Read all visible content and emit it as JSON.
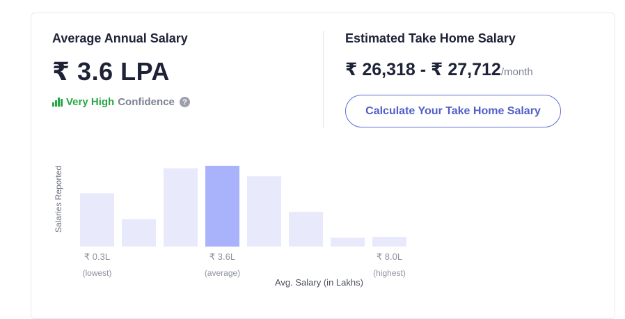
{
  "average": {
    "label": "Average Annual Salary",
    "value": "₹ 3.6 LPA",
    "confidence_level": "Very High",
    "confidence_text": "Confidence",
    "help_glyph": "?"
  },
  "take_home": {
    "label": "Estimated Take Home Salary",
    "range": "₹ 26,318 - ₹ 27,712",
    "unit": "/month",
    "button_label": "Calculate Your Take Home Salary"
  },
  "colors": {
    "bar_default": "#e8eafc",
    "bar_highlight": "#a8b3fb",
    "confidence_green": "#27a744",
    "accent": "#5f6fd4"
  },
  "chart_data": {
    "type": "bar",
    "ylabel": "Salaries Reported",
    "xlabel": "Avg. Salary (in Lakhs)",
    "values": [
      0.66,
      0.34,
      0.97,
      1.0,
      0.87,
      0.43,
      0.11,
      0.12
    ],
    "highlight_index": 3,
    "ylim": [
      0,
      1
    ],
    "ticks": [
      {
        "bar_index": 0,
        "value": "₹ 0.3L",
        "note": "(lowest)"
      },
      {
        "bar_index": 3,
        "value": "₹ 3.6L",
        "note": "(average)"
      },
      {
        "bar_index": 7,
        "value": "₹ 8.0L",
        "note": "(highest)"
      }
    ]
  }
}
